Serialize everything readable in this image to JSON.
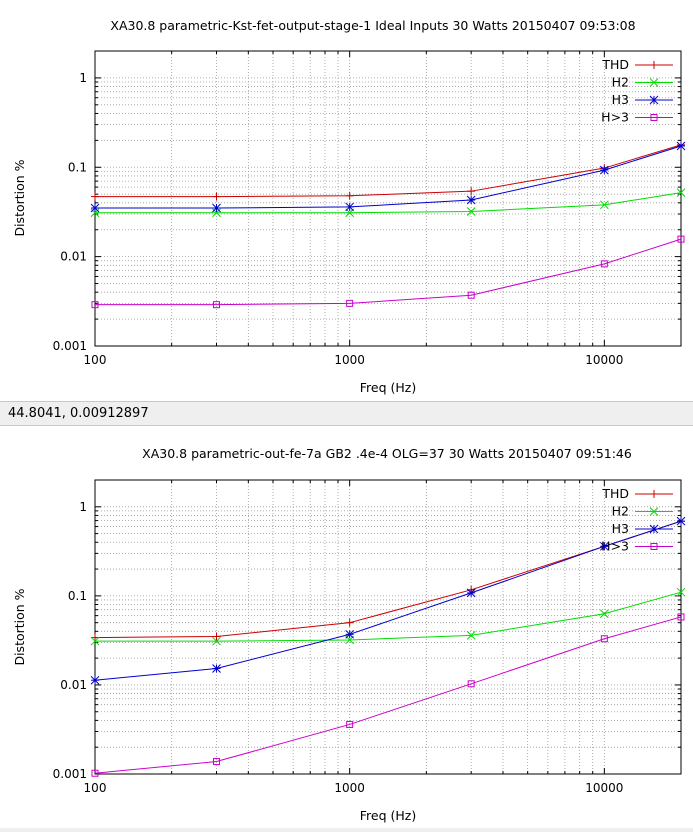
{
  "status": {
    "coords": "44.8041,  0.00912897"
  },
  "colors": {
    "THD": "#cc0000",
    "H2": "#00dd00",
    "H3": "#0000cc",
    "H>3": "#cc00cc"
  },
  "chart_data": [
    {
      "type": "line",
      "title": "XA30.8 parametric-Kst-fet-output-stage-1 Ideal Inputs 30 Watts 20150407 09:53:08",
      "xlabel": "Freq (Hz)",
      "ylabel": "Distortion %",
      "xscale": "log",
      "yscale": "log",
      "xlim": [
        100,
        20000
      ],
      "ylim": [
        0.001,
        2
      ],
      "xticks": [
        "100",
        "1000",
        "10000"
      ],
      "yticks": [
        "0.001",
        "0.01",
        "0.1",
        "1"
      ],
      "grid": true,
      "legend": "top-right",
      "x": [
        100,
        300,
        1000,
        3000,
        10000,
        20000
      ],
      "series": [
        {
          "name": "THD",
          "marker": "plus",
          "values": [
            0.047,
            0.047,
            0.048,
            0.054,
            0.098,
            0.178
          ]
        },
        {
          "name": "H2",
          "marker": "x",
          "values": [
            0.031,
            0.031,
            0.031,
            0.032,
            0.038,
            0.052
          ]
        },
        {
          "name": "H3",
          "marker": "star",
          "values": [
            0.035,
            0.035,
            0.036,
            0.043,
            0.093,
            0.173
          ]
        },
        {
          "name": "H>3",
          "marker": "square",
          "values": [
            0.0029,
            0.0029,
            0.003,
            0.0037,
            0.0083,
            0.0157
          ]
        }
      ]
    },
    {
      "type": "line",
      "title": "XA30.8 parametric-out-fe-7a GB2 .4e-4 OLG=37 30 Watts 20150407 09:51:46",
      "xlabel": "Freq (Hz)",
      "ylabel": "Distortion %",
      "xscale": "log",
      "yscale": "log",
      "xlim": [
        100,
        20000
      ],
      "ylim": [
        0.001,
        2
      ],
      "xticks": [
        "100",
        "1000",
        "10000"
      ],
      "yticks": [
        "0.001",
        "0.01",
        "0.1",
        "1"
      ],
      "grid": true,
      "legend": "top-right",
      "x": [
        100,
        300,
        1000,
        3000,
        10000,
        20000
      ],
      "series": [
        {
          "name": "THD",
          "marker": "plus",
          "values": [
            0.034,
            0.035,
            0.05,
            0.117,
            0.36,
            0.69
          ]
        },
        {
          "name": "H2",
          "marker": "x",
          "values": [
            0.031,
            0.031,
            0.032,
            0.036,
            0.063,
            0.11
          ]
        },
        {
          "name": "H3",
          "marker": "star",
          "values": [
            0.0113,
            0.0153,
            0.037,
            0.108,
            0.36,
            0.69
          ]
        },
        {
          "name": "H>3",
          "marker": "square",
          "values": [
            0.00102,
            0.00138,
            0.0036,
            0.0103,
            0.033,
            0.058
          ]
        }
      ]
    }
  ]
}
